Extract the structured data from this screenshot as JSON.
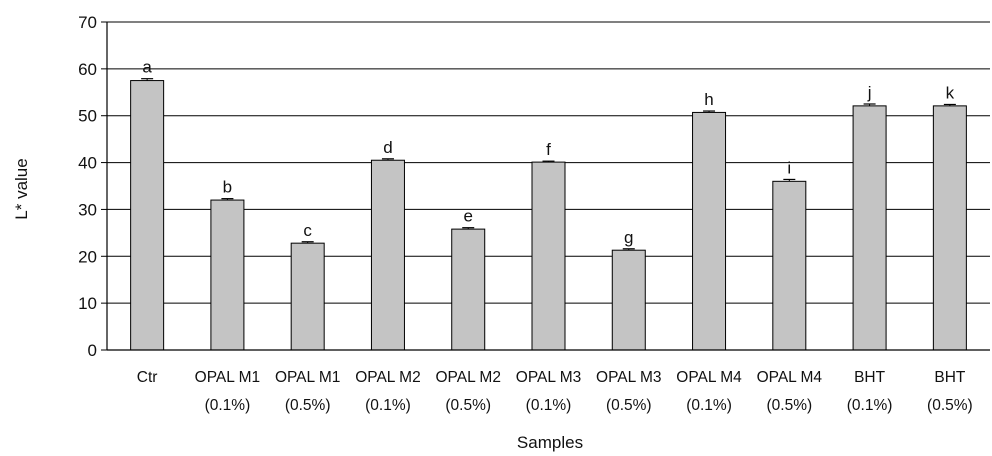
{
  "chart_data": {
    "type": "bar",
    "xlabel": "Samples",
    "ylabel": "L* value",
    "ylim": [
      0,
      70
    ],
    "yticks": [
      0,
      10,
      20,
      30,
      40,
      50,
      60,
      70
    ],
    "grid": true,
    "categories": [
      {
        "line1": "Ctr",
        "line2": ""
      },
      {
        "line1": "OPAL M1",
        "line2": "(0.1%)"
      },
      {
        "line1": "OPAL M1",
        "line2": "(0.5%)"
      },
      {
        "line1": "OPAL M2",
        "line2": "(0.1%)"
      },
      {
        "line1": "OPAL M2",
        "line2": "(0.5%)"
      },
      {
        "line1": "OPAL M3",
        "line2": "(0.1%)"
      },
      {
        "line1": "OPAL M3",
        "line2": "(0.5%)"
      },
      {
        "line1": "OPAL M4",
        "line2": "(0.1%)"
      },
      {
        "line1": "OPAL M4",
        "line2": "(0.5%)"
      },
      {
        "line1": "BHT",
        "line2": "(0.1%)"
      },
      {
        "line1": "BHT",
        "line2": "(0.5%)"
      }
    ],
    "values": [
      57.5,
      32.0,
      22.8,
      40.5,
      25.8,
      40.1,
      21.3,
      50.7,
      36.0,
      52.1,
      52.1
    ],
    "errors": [
      0.4,
      0.3,
      0.3,
      0.3,
      0.3,
      0.2,
      0.3,
      0.3,
      0.4,
      0.4,
      0.3
    ],
    "annotations": [
      "a",
      "b",
      "c",
      "d",
      "e",
      "f",
      "g",
      "h",
      "i",
      "j",
      "k"
    ],
    "colors": {
      "bar": "#c4c4c4",
      "bar_stroke": "#000000",
      "grid": "#000000"
    }
  }
}
